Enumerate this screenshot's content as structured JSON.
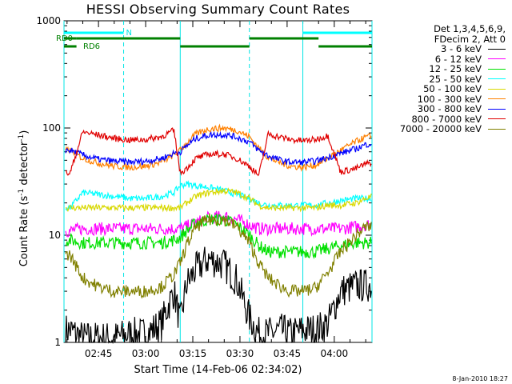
{
  "title": "HESSI Observing Summary Count Rates",
  "xlabel": "Start Time (14-Feb-06 02:34:02)",
  "ylabel_main": "Count Rate (s",
  "ylabel_sup1": "-1",
  "ylabel_mid": " detector",
  "ylabel_sup2": "-1",
  "ylabel_end": ")",
  "timestamp": "8-Jan-2010 18:27",
  "legend": {
    "header1": "Det 1,3,4,5,6,9,",
    "header2": "FDecim 2, Att 0",
    "entries": [
      {
        "label": "3 - 6 keV",
        "color": "#000000"
      },
      {
        "label": "6 - 12 keV",
        "color": "#ff00ff"
      },
      {
        "label": "12 - 25 keV",
        "color": "#00e000"
      },
      {
        "label": "25 - 50 keV",
        "color": "#00ffff"
      },
      {
        "label": "50 - 100 keV",
        "color": "#d8d800"
      },
      {
        "label": "100 - 300 keV",
        "color": "#ff8000"
      },
      {
        "label": "300 - 800 keV",
        "color": "#0000ff"
      },
      {
        "label": "800 - 7000 keV",
        "color": "#e00000"
      },
      {
        "label": "7000 - 20000 keV",
        "color": "#808000"
      }
    ]
  },
  "annotations": {
    "rd0": "RD0",
    "rd6": "RD6",
    "n": "N"
  },
  "chart_data": {
    "type": "line",
    "title": "HESSI Observing Summary Count Rates",
    "xlabel": "Start Time (14-Feb-06 02:34:02)",
    "ylabel": "Count Rate (s^-1 detector^-1)",
    "yscale": "log",
    "xlim": [
      "02:34:02",
      "04:12:00"
    ],
    "ylim": [
      1,
      1000
    ],
    "x_ticks": [
      "02:45",
      "03:00",
      "03:15",
      "03:30",
      "03:45",
      "04:00"
    ],
    "y_ticks": [
      "1",
      "10",
      "100",
      "1000"
    ],
    "x_unit": "minutes after 02:30",
    "x": [
      6,
      10,
      15,
      20,
      25,
      30,
      35,
      39,
      41,
      43,
      46,
      50,
      55,
      59,
      63,
      66,
      69,
      73,
      76,
      80,
      84,
      88,
      92,
      97,
      100,
      102
    ],
    "series": [
      {
        "name": "3 - 6 keV",
        "color": "#000000",
        "values": [
          1.3,
          1.1,
          1.1,
          1.1,
          1.2,
          1.2,
          1.5,
          3.0,
          1.5,
          3.5,
          4.8,
          6.0,
          5.3,
          3.8,
          1.7,
          1.2,
          1.2,
          1.3,
          1.2,
          1.3,
          1.3,
          1.5,
          3.0,
          3.4,
          3.4,
          3.4
        ]
      },
      {
        "name": "6 - 12 keV",
        "color": "#ff00ff",
        "values": [
          11,
          11.5,
          11.5,
          11.5,
          11.5,
          11.5,
          11.5,
          11.5,
          11.5,
          12,
          13,
          14.5,
          15,
          14,
          12.5,
          11.5,
          11.5,
          11.5,
          11.5,
          11.5,
          11.5,
          11.5,
          11.5,
          12,
          12.5,
          12.5
        ]
      },
      {
        "name": "12 - 25 keV",
        "color": "#00e000",
        "values": [
          9,
          8.5,
          8.5,
          8.5,
          8.5,
          8.5,
          8.5,
          9,
          9.5,
          11,
          13,
          14,
          14,
          12.5,
          10,
          8,
          7,
          7,
          7,
          7,
          7,
          7.5,
          8,
          8.5,
          8.5,
          8.5
        ]
      },
      {
        "name": "25 - 50 keV",
        "color": "#00ffff",
        "values": [
          18,
          25,
          24,
          23,
          22,
          22,
          23,
          25,
          29,
          30,
          29,
          28,
          26,
          24,
          22,
          20,
          19,
          19,
          19,
          19,
          19,
          20,
          21,
          22,
          22,
          22
        ]
      },
      {
        "name": "50 - 100 keV",
        "color": "#d8d800",
        "values": [
          18,
          18,
          18,
          18,
          18,
          18,
          18,
          18,
          18,
          20,
          23,
          25,
          26,
          25,
          22,
          19,
          18,
          18,
          18,
          18,
          18,
          19,
          19,
          20,
          22,
          23
        ]
      },
      {
        "name": "100 - 300 keV",
        "color": "#ff8000",
        "values": [
          62,
          52,
          47,
          44,
          43,
          44,
          48,
          56,
          62,
          72,
          88,
          98,
          100,
          95,
          83,
          65,
          53,
          47,
          44,
          43,
          45,
          52,
          62,
          75,
          82,
          84
        ]
      },
      {
        "name": "300 - 800 keV",
        "color": "#0000ff",
        "values": [
          62,
          56,
          51,
          49,
          48,
          49,
          52,
          58,
          60,
          68,
          80,
          86,
          87,
          82,
          74,
          62,
          55,
          50,
          48,
          48,
          49,
          53,
          58,
          64,
          70,
          72
        ]
      },
      {
        "name": "800 - 7000 keV",
        "color": "#e00000",
        "values": [
          38,
          92,
          86,
          80,
          77,
          78,
          83,
          95,
          38,
          42,
          52,
          57,
          57,
          52,
          44,
          36,
          88,
          82,
          78,
          76,
          78,
          85,
          39,
          42,
          46,
          48
        ]
      },
      {
        "name": "7000 - 20000 keV",
        "color": "#808000",
        "values": [
          6.5,
          4,
          3.3,
          3,
          3,
          3,
          3.3,
          4.3,
          5.5,
          8,
          12,
          14,
          14,
          12,
          8.5,
          5.5,
          4,
          3.3,
          3,
          3,
          3.2,
          4.5,
          7,
          10,
          12,
          12
        ]
      }
    ],
    "rd0_segments": [
      [
        0,
        8
      ],
      [
        8,
        41
      ],
      [
        63,
        85
      ]
    ],
    "rd6_segments": [
      [
        41,
        63
      ],
      [
        85,
        102
      ]
    ],
    "n_segment": [
      0,
      23
    ],
    "n_segment2": [
      80,
      102
    ],
    "solid_vlines": [
      0,
      41,
      80,
      102
    ],
    "dashed_vlines": [
      23,
      63,
      102
    ]
  }
}
